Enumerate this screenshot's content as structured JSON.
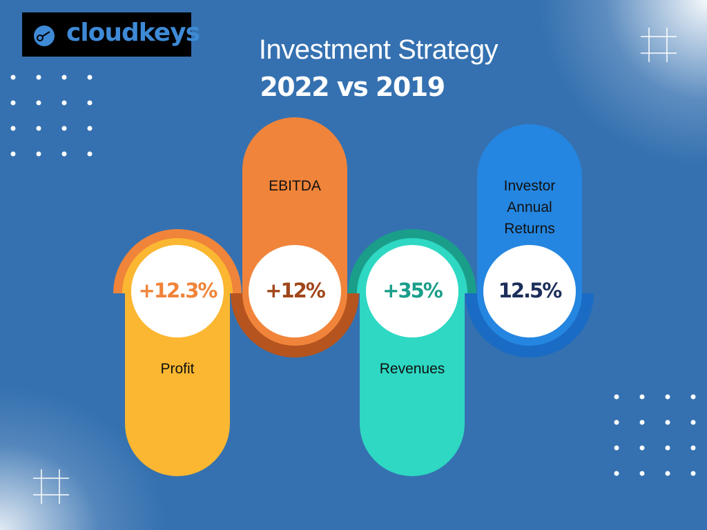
{
  "header": {
    "logo": "cloudkeys",
    "title": "Investment Strategy",
    "subtitle": "2022 vs 2019"
  },
  "items": [
    {
      "label": "Profit",
      "value": "+12.3%"
    },
    {
      "label": "EBITDA",
      "value": "+12%"
    },
    {
      "label": "Revenues",
      "value": "+35%"
    },
    {
      "label": "Investor Annual Returns",
      "value": "12.5%"
    }
  ]
}
